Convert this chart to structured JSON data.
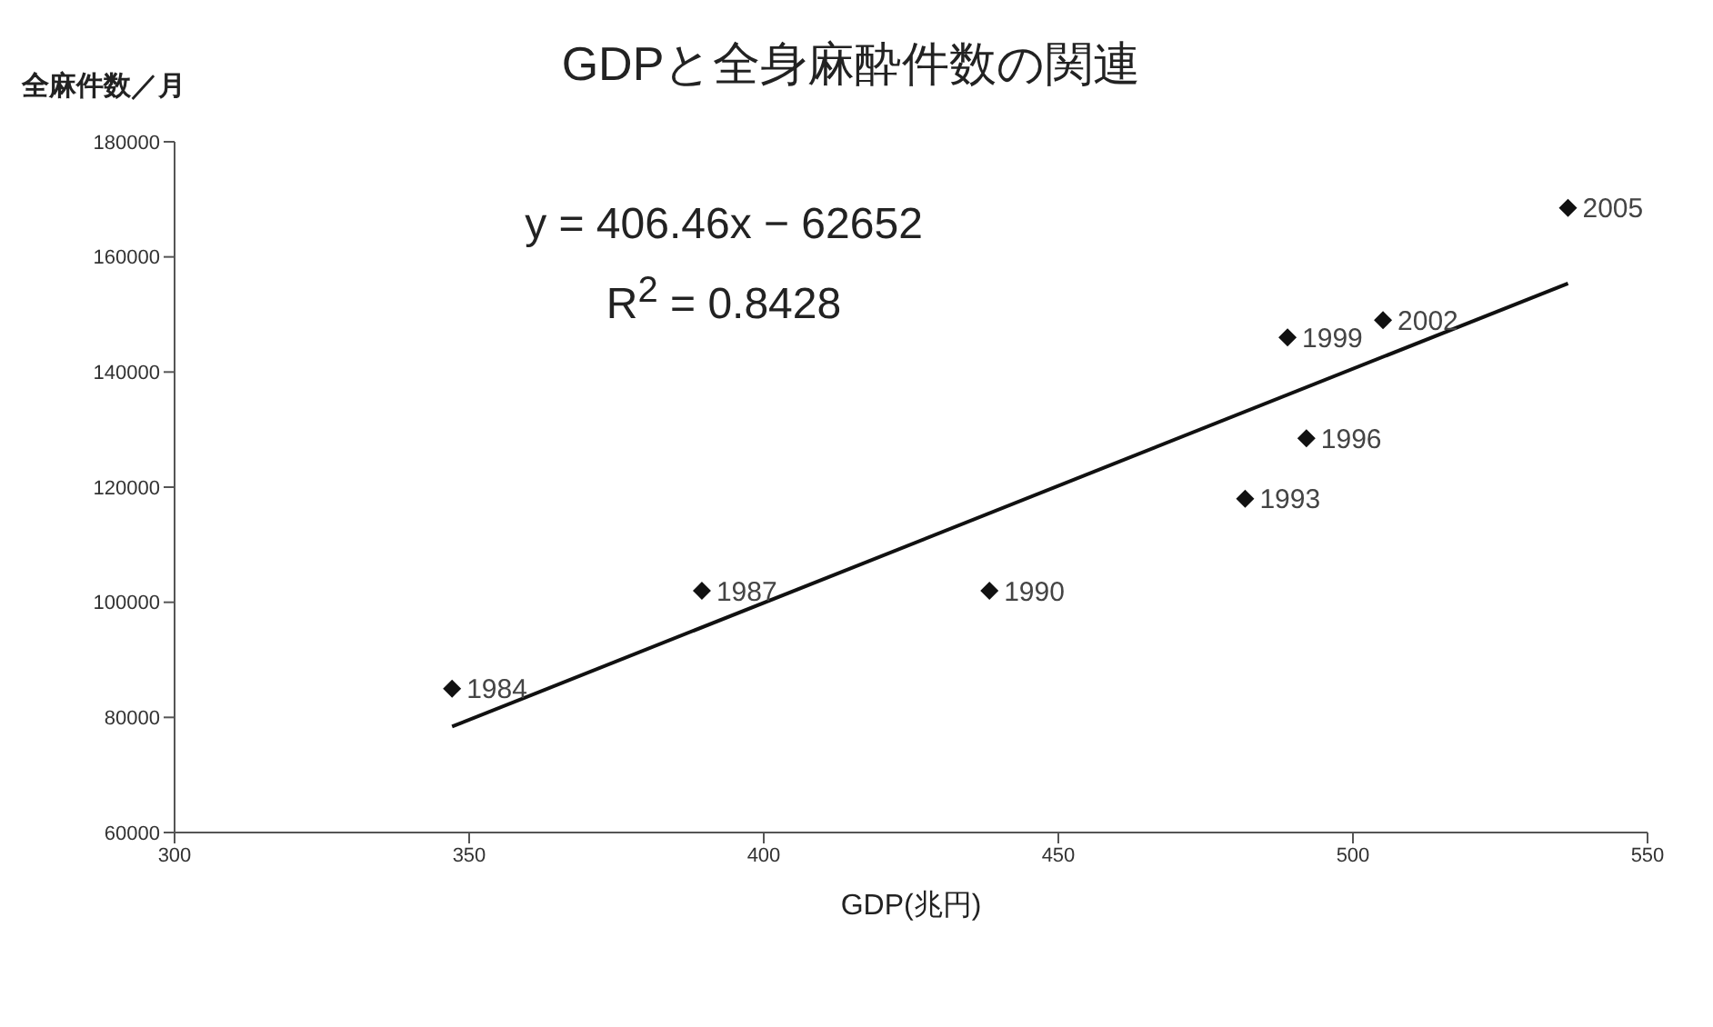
{
  "chart_data": {
    "type": "scatter",
    "title": "GDPと全身麻酔件数の関連",
    "xlabel": "GDP(兆円)",
    "ylabel": "全麻件数／月",
    "series": [
      {
        "color": "#111111",
        "x": [
          347.1,
          389.5,
          438.3,
          481.7,
          492.1,
          488.9,
          505.1,
          536.5
        ],
        "values": [
          85000,
          102000,
          102000,
          118000,
          128500,
          146000,
          149000,
          168500
        ]
      },
      {
        "type": "line",
        "marker": "none",
        "color": "#111111",
        "x": [
          347.1,
          536.5
        ],
        "values": [
          78400,
          155400
        ]
      }
    ],
    "annotations": [
      {
        "text": "1984",
        "x": 347.1,
        "y": 85000
      },
      {
        "text": "1987",
        "x": 389.5,
        "y": 102000
      },
      {
        "text": "1990",
        "x": 438.3,
        "y": 102000
      },
      {
        "text": "1993",
        "x": 481.7,
        "y": 118000
      },
      {
        "text": "1996",
        "x": 492.1,
        "y": 128500
      },
      {
        "text": "1999",
        "x": 488.9,
        "y": 146000
      },
      {
        "text": "2002",
        "x": 505.1,
        "y": 149000
      },
      {
        "text": "2005",
        "x": 536.5,
        "y": 168500
      },
      "y = 406.46x − 62652",
      "R$^{2}$ = 0.8428"
    ],
    "xlim": [
      300,
      550
    ],
    "xticks": [
      300,
      350,
      400,
      450,
      500,
      550
    ],
    "ylim": [
      60000,
      180000
    ],
    "yticks": [
      60000,
      80000,
      100000,
      120000,
      140000,
      160000,
      180000
    ],
    "grid": false,
    "legend": false,
    "marker": "diamond"
  }
}
